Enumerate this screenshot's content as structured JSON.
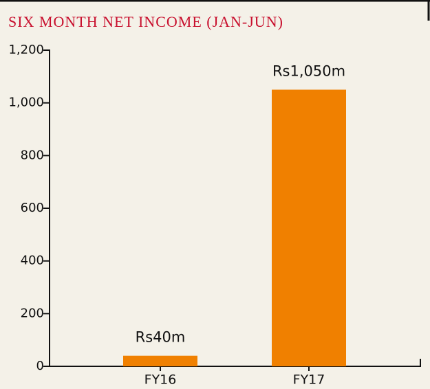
{
  "chart_data": {
    "type": "bar",
    "title": "SIX MONTH NET INCOME (JAN-JUN)",
    "categories": [
      "FY16",
      "FY17"
    ],
    "values": [
      40,
      1050
    ],
    "value_labels": [
      "Rs40m",
      "Rs1,050m"
    ],
    "color": "#f08000",
    "ylim": [
      0,
      1200
    ],
    "yticks": [
      0,
      200,
      400,
      600,
      800,
      {
        "value": 1000,
        "label": "1,000"
      },
      {
        "value": 1200,
        "label": "1,200"
      }
    ]
  }
}
